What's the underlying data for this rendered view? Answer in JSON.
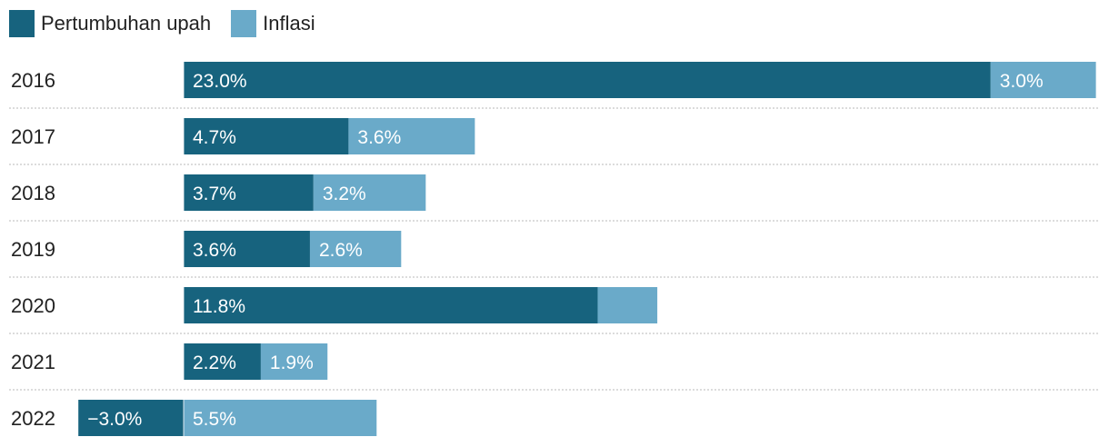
{
  "chart_data": {
    "type": "bar",
    "orientation": "horizontal",
    "stacked": true,
    "categories": [
      "2016",
      "2017",
      "2018",
      "2019",
      "2020",
      "2021",
      "2022"
    ],
    "series": [
      {
        "name": "Pertumbuhan upah",
        "color": "#17637e",
        "values": [
          23.0,
          4.7,
          3.7,
          3.6,
          11.8,
          2.2,
          -3.0
        ],
        "labels": [
          "23.0%",
          "4.7%",
          "3.7%",
          "3.6%",
          "11.8%",
          "2.2%",
          "−3.0%"
        ]
      },
      {
        "name": "Inflasi",
        "color": "#6aaac9",
        "values": [
          3.0,
          3.6,
          3.2,
          2.6,
          1.7,
          1.9,
          5.5
        ],
        "labels": [
          "3.0%",
          "3.6%",
          "3.2%",
          "2.6%",
          "",
          "1.9%",
          "5.5%"
        ]
      }
    ],
    "xlim": [
      -6.0,
      26.0
    ],
    "grid": "row separators (dotted)",
    "legend": "top-left"
  }
}
